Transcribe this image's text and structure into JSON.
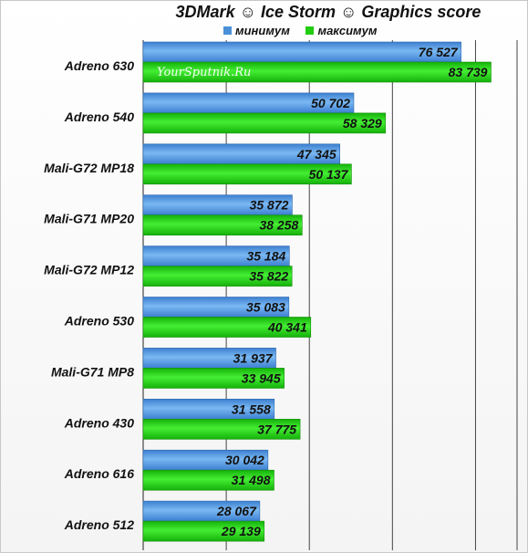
{
  "title": "3DMark ☺ Ice Storm ☺ Graphics score",
  "watermark": "YourSputnik.Ru",
  "legend": [
    {
      "label": "минимум",
      "color": "#4a90d9"
    },
    {
      "label": "максимум",
      "color": "#22cc11"
    }
  ],
  "chart_data": {
    "type": "bar",
    "orientation": "horizontal",
    "title": "3DMark ☺ Ice Storm ☺ Graphics score",
    "categories": [
      "Adreno 630",
      "Adreno 540",
      "Mali-G72 MP18",
      "Mali-G71 MP20",
      "Mali-G72 MP12",
      "Adreno 530",
      "Mali-G71 MP8",
      "Adreno 430",
      "Adreno 616",
      "Adreno 512"
    ],
    "series": [
      {
        "name": "минимум",
        "color": "#4a90d9",
        "values": [
          76527,
          50702,
          47345,
          35872,
          35184,
          35083,
          31937,
          31558,
          30042,
          28067
        ],
        "labels": [
          "76 527",
          "50 702",
          "47 345",
          "35 872",
          "35 184",
          "35 083",
          "31 937",
          "31 558",
          "30 042",
          "28 067"
        ]
      },
      {
        "name": "максимум",
        "color": "#22cc11",
        "values": [
          83739,
          58329,
          50137,
          38258,
          35822,
          40341,
          33945,
          37775,
          31498,
          29139
        ],
        "labels": [
          "83 739",
          "58 329",
          "50 137",
          "38 258",
          "35 822",
          "40 341",
          "33 945",
          "37 775",
          "31 498",
          "29 139"
        ]
      }
    ],
    "xlim": [
      0,
      90000
    ],
    "grid": true,
    "legend_position": "top"
  }
}
